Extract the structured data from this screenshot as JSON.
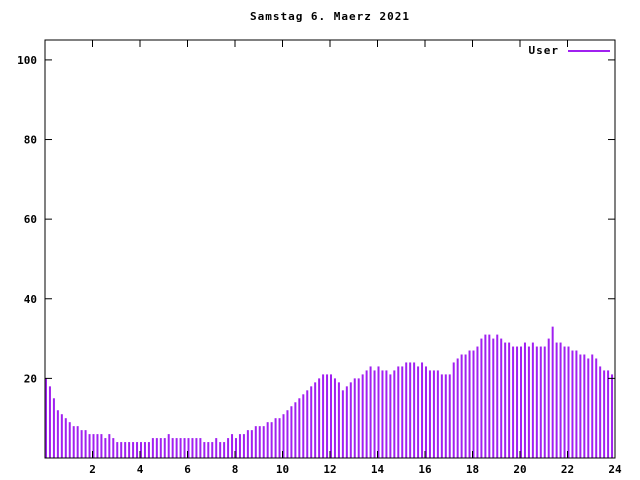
{
  "chart_data": {
    "type": "bar",
    "title": "Samstag 6. Maerz 2021",
    "legend": "User",
    "bar_color": "#a020f0",
    "axis_color": "#000000",
    "xlabel": "",
    "ylabel": "",
    "xlim": [
      0,
      24
    ],
    "ylim": [
      0,
      105
    ],
    "x_ticks": [
      2,
      4,
      6,
      8,
      10,
      12,
      14,
      16,
      18,
      20,
      22,
      24
    ],
    "y_ticks": [
      20,
      40,
      60,
      80,
      100
    ],
    "grid": false,
    "legend_position": "top-right-inside",
    "x_start": 0,
    "x_step_hours": 0.1666667,
    "values": [
      20,
      18,
      15,
      12,
      11,
      10,
      9,
      8,
      8,
      7,
      7,
      6,
      6,
      6,
      6,
      5,
      6,
      5,
      4,
      4,
      4,
      4,
      4,
      4,
      4,
      4,
      4,
      5,
      5,
      5,
      5,
      6,
      5,
      5,
      5,
      5,
      5,
      5,
      5,
      5,
      4,
      4,
      4,
      5,
      4,
      4,
      5,
      6,
      5,
      6,
      6,
      7,
      7,
      8,
      8,
      8,
      9,
      9,
      10,
      10,
      11,
      12,
      13,
      14,
      15,
      16,
      17,
      18,
      19,
      20,
      21,
      21,
      21,
      20,
      19,
      17,
      18,
      19,
      20,
      20,
      21,
      22,
      23,
      22,
      23,
      22,
      22,
      21,
      22,
      23,
      23,
      24,
      24,
      24,
      23,
      24,
      23,
      22,
      22,
      22,
      21,
      21,
      21,
      24,
      25,
      26,
      26,
      27,
      27,
      28,
      30,
      31,
      31,
      30,
      31,
      30,
      29,
      29,
      28,
      28,
      28,
      29,
      28,
      29,
      28,
      28,
      28,
      30,
      33,
      29,
      29,
      28,
      28,
      27,
      27,
      26,
      26,
      25,
      26,
      25,
      23,
      22,
      22,
      21
    ]
  }
}
